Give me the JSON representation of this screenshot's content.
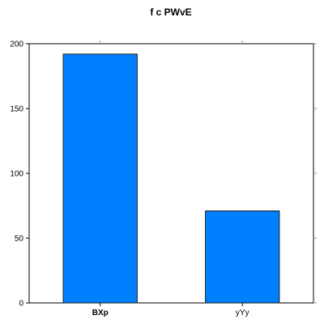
{
  "chart_data": {
    "type": "bar",
    "title": "f c PWvE",
    "xlabel": "",
    "ylabel": "",
    "categories": [
      "BXp",
      "yYy"
    ],
    "category_bold": [
      true,
      false
    ],
    "values": [
      192,
      71
    ],
    "ylim": [
      0,
      200
    ],
    "yticks": [
      0,
      50,
      100,
      150,
      200
    ],
    "bar_color": "#0080ff",
    "bar_edge_color": "#1a1a1a",
    "grid": false,
    "legend": "none"
  }
}
